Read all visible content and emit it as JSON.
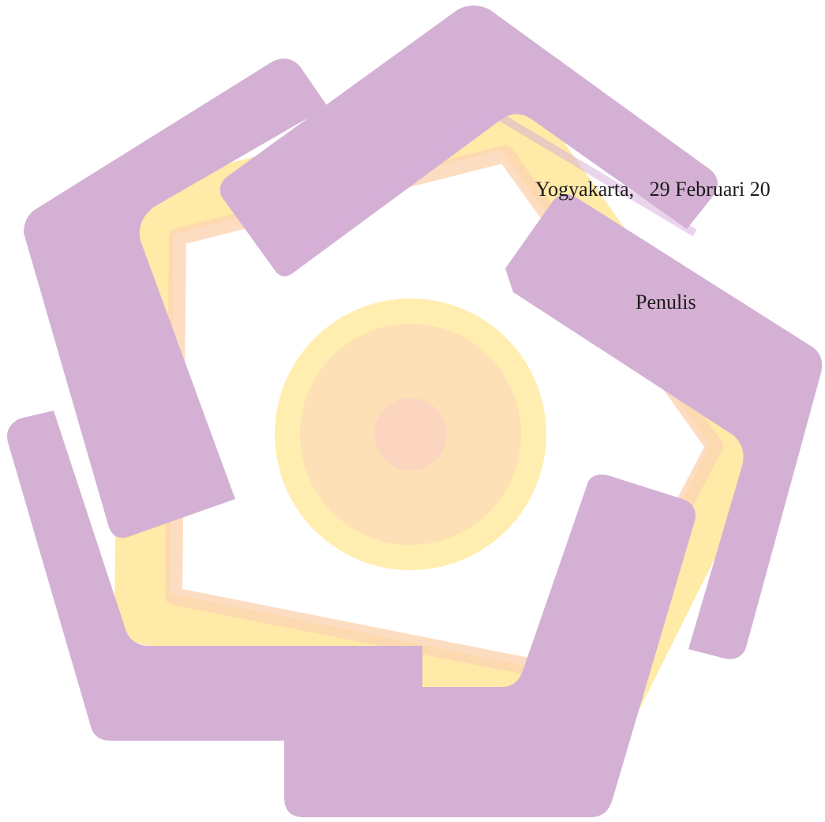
{
  "signature_block": {
    "place_date": "Yogyakarta,   29 Februari 20",
    "role": "Penulis"
  },
  "watermark": {
    "icon": "university-pentagon-logo-icon",
    "colors": {
      "purple": "#d4b1d4",
      "purple_light": "#d8acd9",
      "yellow": "#ffeaa7",
      "peach": "#fcd5b3",
      "orange": "#ffcba6"
    }
  }
}
